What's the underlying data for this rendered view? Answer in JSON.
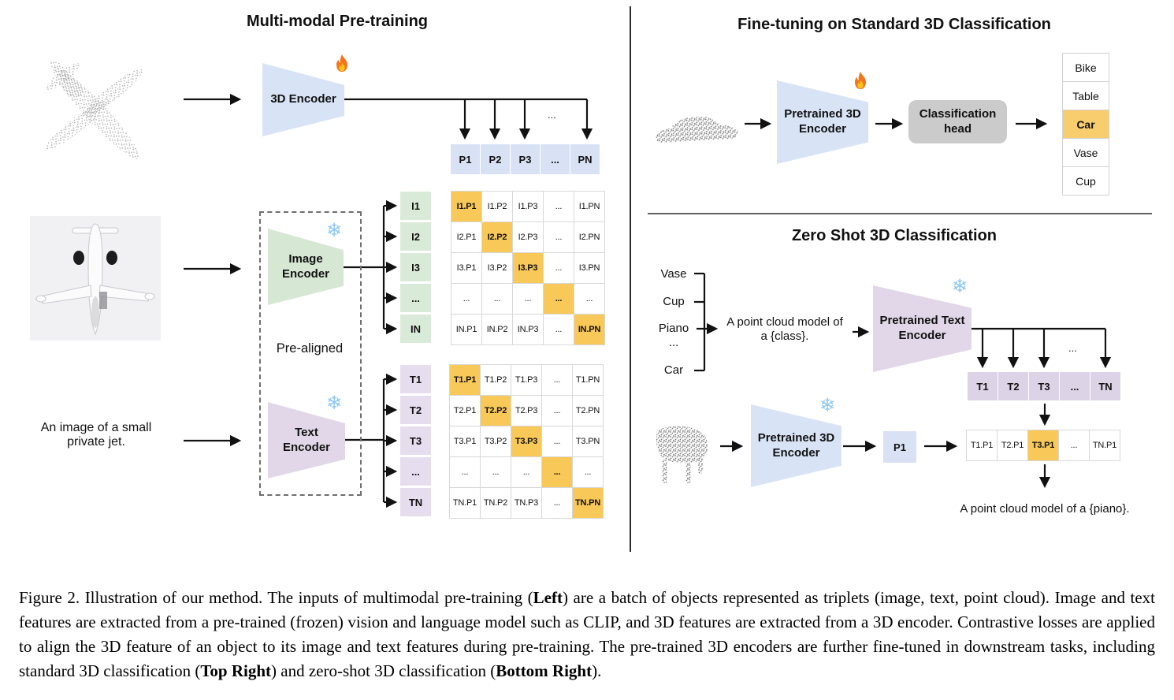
{
  "panel_left": {
    "title": "Multi-modal Pre-training",
    "input_caption": "An image of a small private jet.",
    "encoder_3d": "3D Encoder",
    "image_encoder": "Image\nEncoder",
    "text_encoder": "Text\nEncoder",
    "pre_aligned": "Pre-aligned",
    "p_row": [
      "P1",
      "P2",
      "P3",
      "...",
      "PN"
    ],
    "i_col": [
      "I1",
      "I2",
      "I3",
      "...",
      "IN"
    ],
    "t_col": [
      "T1",
      "T2",
      "T3",
      "...",
      "TN"
    ],
    "i_matrix": [
      {
        "t": "I1.P1",
        "hl": true
      },
      "I1.P2",
      "I1.P3",
      "...",
      "I1.PN",
      "I2.P1",
      {
        "t": "I2.P2",
        "hl": true
      },
      "I2.P3",
      "...",
      "I2.PN",
      "I3.P1",
      "I3.P2",
      {
        "t": "I3.P3",
        "hl": true
      },
      "...",
      "I3.PN",
      "...",
      "...",
      "...",
      {
        "t": "...",
        "hl": true
      },
      "...",
      "IN.P1",
      "IN.P2",
      "IN.P3",
      "...",
      {
        "t": "IN.PN",
        "hl": true
      }
    ],
    "t_matrix": [
      {
        "t": "T1.P1",
        "hl": true
      },
      "T1.P2",
      "T1.P3",
      "...",
      "T1.PN",
      "T2.P1",
      {
        "t": "T2.P2",
        "hl": true
      },
      "T2.P3",
      "...",
      "T2.PN",
      "T3.P1",
      "T3.P2",
      {
        "t": "T3.P3",
        "hl": true
      },
      "...",
      "T3.PN",
      "...",
      "...",
      "...",
      {
        "t": "...",
        "hl": true
      },
      "...",
      "TN.P1",
      "TN.P2",
      "TN.P3",
      "...",
      {
        "t": "TN.PN",
        "hl": true
      }
    ]
  },
  "panel_finetune": {
    "title": "Fine-tuning on Standard 3D Classification",
    "encoder": "Pretrained 3D\nEncoder",
    "head": "Classification\nhead",
    "classes": [
      "Bike",
      "Table",
      {
        "t": "Car",
        "hl": true
      },
      "Vase",
      "Cup"
    ]
  },
  "panel_zeroshot": {
    "title": "Zero Shot 3D Classification",
    "class_1": "Vase",
    "class_2": "Cup",
    "class_3": "Piano",
    "class_4": "...",
    "class_5": "Car",
    "prompt": "A point cloud model of\na {class}.",
    "text_encoder": "Pretrained Text\nEncoder",
    "encoder_3d": "Pretrained 3D\nEncoder",
    "t_row": [
      "T1",
      "T2",
      "T3",
      "...",
      "TN"
    ],
    "p1": "P1",
    "result_row": [
      "T1.P1",
      "T2.P1",
      {
        "t": "T3.P1",
        "hl": true
      },
      "...",
      "TN.P1"
    ],
    "result_prompt": "A point cloud model of a {piano}."
  },
  "misc": {
    "ellipsis": "..."
  },
  "icons": {
    "trainable": "fire-icon",
    "frozen": "snowflake-icon"
  },
  "colors": {
    "accent_orange": "#F8C858",
    "encoder_blue": "#D8E4F6",
    "encoder_green": "#D6E7D4",
    "encoder_purple": "#E2D7E9",
    "head_gray": "#CBCBCB"
  },
  "caption": {
    "segments": [
      {
        "t": "Figure 2. Illustration of our method. The inputs of multimodal pre-training (",
        "b": false
      },
      {
        "t": "Left",
        "b": true
      },
      {
        "t": ") are a batch of objects represented as triplets (image, text, point cloud). Image and text features are extracted from a pre-trained (frozen) vision and language model such as CLIP, and 3D features are extracted from a 3D encoder. Contrastive losses are applied to align the 3D feature of an object to its image and text features during pre-training. The pre-trained 3D encoders are further fine-tuned in downstream tasks, including standard 3D classification (",
        "b": false
      },
      {
        "t": "Top Right",
        "b": true
      },
      {
        "t": ") and zero-shot 3D classification (",
        "b": false
      },
      {
        "t": "Bottom Right",
        "b": true
      },
      {
        "t": ").",
        "b": false
      }
    ]
  }
}
